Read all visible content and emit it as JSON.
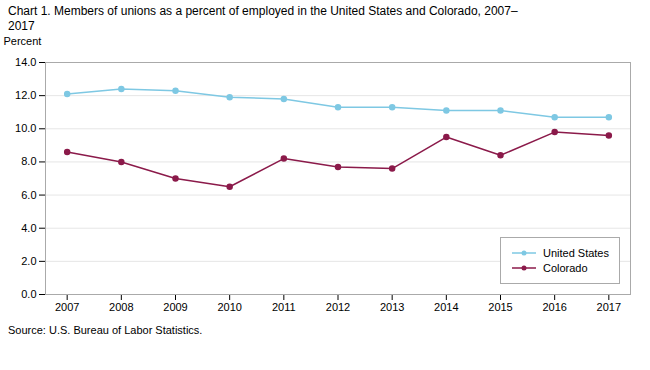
{
  "chart_data": {
    "type": "line",
    "title": "Chart 1. Members of unions as a percent of employed in the United States and Colorado, 2007–\n2017",
    "y_label": "Percent",
    "caption": "Source: U.S. Bureau of Labor Statistics.",
    "x": [
      2007,
      2008,
      2009,
      2010,
      2011,
      2012,
      2013,
      2014,
      2015,
      2016,
      2017
    ],
    "series": [
      {
        "name": "United States",
        "color": "#7ec8e3",
        "marker": "circle",
        "values": [
          12.1,
          12.4,
          12.3,
          11.9,
          11.8,
          11.3,
          11.3,
          11.1,
          11.1,
          10.7,
          10.7
        ]
      },
      {
        "name": "Colorado",
        "color": "#8b1a4a",
        "marker": "circle",
        "values": [
          8.6,
          8.0,
          7.0,
          6.5,
          8.2,
          7.7,
          7.6,
          9.5,
          8.4,
          9.8,
          9.6
        ]
      }
    ],
    "xlim": [
      2006.6,
      2017.4
    ],
    "xticks": [
      2007,
      2008,
      2009,
      2010,
      2011,
      2012,
      2013,
      2014,
      2015,
      2016,
      2017
    ],
    "ylim": [
      0.0,
      14.0
    ],
    "yticks": [
      {
        "value": 0,
        "label": "0.0"
      },
      {
        "value": 2,
        "label": "2.0"
      },
      {
        "value": 4,
        "label": "4.0"
      },
      {
        "value": 6,
        "label": "6.0"
      },
      {
        "value": 8,
        "label": "8.0"
      },
      {
        "value": 10,
        "label": "10.0"
      },
      {
        "value": 12,
        "label": "12.0"
      },
      {
        "value": 14,
        "label": "14.0"
      }
    ],
    "grid": "y",
    "legend": "lower right"
  }
}
